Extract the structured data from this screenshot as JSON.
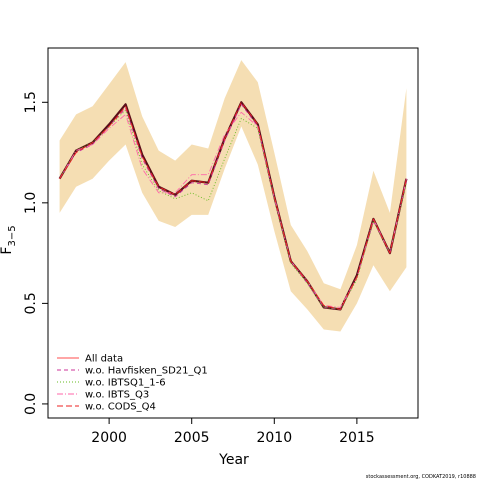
{
  "chart_data": {
    "type": "line",
    "xlabel": "Year",
    "ylabel_main": "F",
    "ylabel_sub": "3−5",
    "xlim": [
      1996.3,
      2018.7
    ],
    "ylim": [
      -0.07,
      1.77
    ],
    "x_ticks": [
      2000,
      2005,
      2010,
      2015
    ],
    "x_tick_labels": [
      "2000",
      "2005",
      "2010",
      "2015"
    ],
    "y_ticks": [
      0.0,
      0.5,
      1.0,
      1.5
    ],
    "y_tick_labels": [
      "0.0",
      "0.5",
      "1.0",
      "1.5"
    ],
    "grid": false,
    "legend_position": "bottom-left",
    "footer": "stockassessment.org, CODKAT2019, r10888",
    "x": [
      1997,
      1998,
      1999,
      2000,
      2001,
      2002,
      2003,
      2004,
      2005,
      2006,
      2007,
      2008,
      2009,
      2010,
      2011,
      2012,
      2013,
      2014,
      2015,
      2016,
      2017,
      2018
    ],
    "band": {
      "color": "#f5deb3",
      "lower": [
        0.95,
        1.08,
        1.12,
        1.21,
        1.29,
        1.05,
        0.91,
        0.88,
        0.94,
        0.94,
        1.17,
        1.38,
        1.19,
        0.86,
        0.56,
        0.47,
        0.37,
        0.36,
        0.5,
        0.69,
        0.56,
        0.68
      ],
      "upper": [
        1.31,
        1.44,
        1.48,
        1.59,
        1.7,
        1.43,
        1.26,
        1.21,
        1.29,
        1.27,
        1.52,
        1.71,
        1.6,
        1.25,
        0.89,
        0.76,
        0.6,
        0.57,
        0.79,
        1.16,
        0.95,
        1.57
      ]
    },
    "series": [
      {
        "name": "All data",
        "color": "#5a0f1a",
        "dash": "",
        "width": 2.2,
        "values": [
          1.12,
          1.26,
          1.3,
          1.39,
          1.49,
          1.24,
          1.08,
          1.04,
          1.11,
          1.1,
          1.32,
          1.5,
          1.39,
          1.03,
          0.71,
          0.61,
          0.48,
          0.47,
          0.64,
          0.92,
          0.75,
          1.12
        ]
      },
      {
        "name": "w.o. Havfisken_SD21_Q1",
        "color": "#cc3399",
        "dash": "4,3",
        "width": 0.9,
        "values": [
          1.12,
          1.25,
          1.29,
          1.38,
          1.47,
          1.22,
          1.07,
          1.03,
          1.1,
          1.09,
          1.31,
          1.49,
          1.38,
          1.02,
          0.71,
          0.6,
          0.48,
          0.47,
          0.63,
          0.91,
          0.75,
          1.11
        ]
      },
      {
        "name": "w.o. IBTSQ1_1-6",
        "color": "#66bb22",
        "dash": "1,2",
        "width": 0.9,
        "values": [
          1.12,
          1.26,
          1.3,
          1.38,
          1.46,
          1.19,
          1.06,
          1.02,
          1.05,
          1.01,
          1.22,
          1.42,
          1.37,
          1.02,
          0.7,
          0.6,
          0.48,
          0.47,
          0.62,
          0.91,
          0.75,
          1.1
        ]
      },
      {
        "name": "w.o. IBTS_Q3",
        "color": "#ff66aa",
        "dash": "6,2,1,2",
        "width": 0.9,
        "values": [
          1.12,
          1.26,
          1.29,
          1.37,
          1.44,
          1.17,
          1.05,
          1.05,
          1.14,
          1.14,
          1.34,
          1.45,
          1.38,
          1.03,
          0.71,
          0.61,
          0.49,
          0.48,
          0.63,
          0.92,
          0.75,
          1.12
        ]
      },
      {
        "name": "w.o. CODS_Q4",
        "color": "#ee2222",
        "dash": "6,3",
        "width": 0.9,
        "values": [
          1.12,
          1.25,
          1.3,
          1.38,
          1.48,
          1.23,
          1.08,
          1.04,
          1.11,
          1.1,
          1.32,
          1.5,
          1.39,
          1.03,
          0.71,
          0.61,
          0.49,
          0.47,
          0.63,
          0.92,
          0.75,
          1.12
        ]
      }
    ],
    "legend_colors": [
      "#ff4d4d",
      "#cc3399",
      "#66bb22",
      "#ff66aa",
      "#ee2222"
    ]
  }
}
